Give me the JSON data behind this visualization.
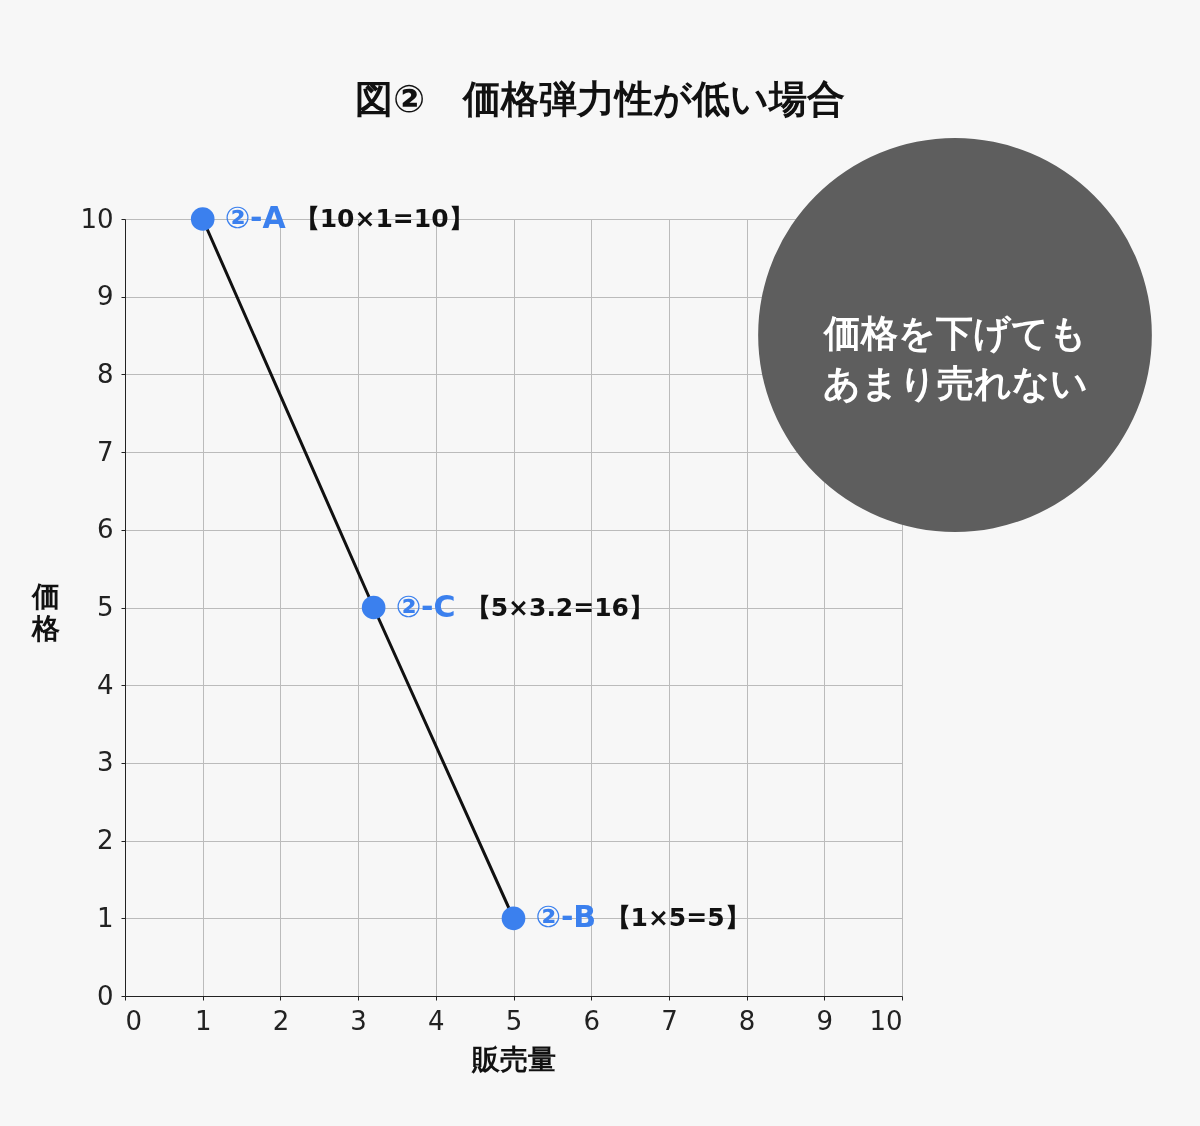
{
  "chart_data": {
    "type": "line",
    "title": "図②　価格弾力性が低い場合",
    "xlabel": "販売量",
    "ylabel": "価格",
    "x": [
      1,
      3.2,
      5
    ],
    "series": [
      {
        "color": "#3b80ee",
        "values": [
          10,
          5,
          1
        ],
        "value_labels": [
          "②-A",
          "②-C",
          "②-B"
        ]
      }
    ],
    "annotations": [
      "【10×1=10】",
      "【5×3.2=16】",
      "【1×5=5】",
      "価格を下げてもあまり売れない"
    ],
    "xlim": [
      0,
      10
    ],
    "ylim": [
      0,
      10
    ],
    "xticks": [
      0,
      1,
      2,
      3,
      4,
      5,
      6,
      7,
      8,
      9,
      10
    ],
    "yticks": [
      0,
      1,
      2,
      3,
      4,
      5,
      6,
      7,
      8,
      9,
      10
    ],
    "grid": true,
    "marker": "circle",
    "line_style": "solid"
  }
}
